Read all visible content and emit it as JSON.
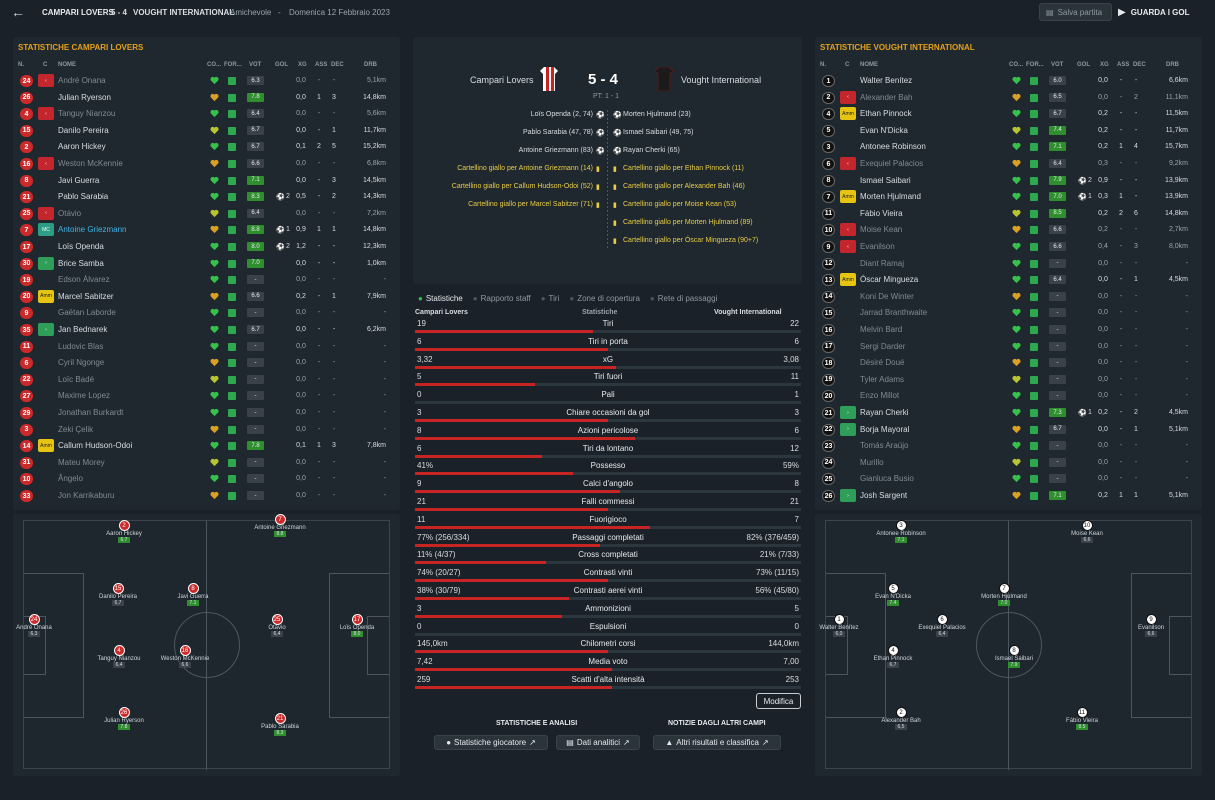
{
  "header": {
    "back_icon": "arrow-left-icon",
    "home": "CAMPARI LOVERS",
    "score": "5 - 4",
    "away": "VOUGHT INTERNATIONAL",
    "type": "Amichevole",
    "dash": "-",
    "date": "Domenica 12 Febbraio 2023",
    "save": "Salva partita",
    "watch": "GUARDA I GOL"
  },
  "cols": {
    "n": "N.",
    "c": "C",
    "nome": "NOME",
    "co": "CO...",
    "for": "FOR...",
    "vot": "VOT",
    "xg": "XG",
    "gol": "GOL",
    "ass": "ASS",
    "dec": "DEC",
    "drb": "DRB"
  },
  "home_panel": {
    "title": "STATISTICHE CAMPARI LOVERS",
    "players": [
      {
        "n": "24",
        "badge": "out",
        "name": "André Onana",
        "vot": "6.3",
        "gol": "",
        "xg": "0,0",
        "ass": "-",
        "dec": "-",
        "drb": "5,1km",
        "dim": true
      },
      {
        "n": "26",
        "badge": "",
        "name": "Julian Ryerson",
        "vot": "7.8",
        "gol": "",
        "xg": "0,0",
        "ass": "1",
        "dec": "3",
        "drb": "14,8km",
        "dim": false
      },
      {
        "n": "4",
        "badge": "out",
        "name": "Tanguy Nianzou",
        "vot": "6.4",
        "gol": "",
        "xg": "0,0",
        "ass": "-",
        "dec": "-",
        "drb": "5,6km",
        "dim": true
      },
      {
        "n": "15",
        "badge": "",
        "name": "Danilo Pereira",
        "vot": "6.7",
        "gol": "",
        "xg": "0,0",
        "ass": "-",
        "dec": "1",
        "drb": "11,7km",
        "dim": false
      },
      {
        "n": "2",
        "badge": "",
        "name": "Aaron Hickey",
        "vot": "6.7",
        "gol": "",
        "xg": "0,1",
        "ass": "2",
        "dec": "5",
        "drb": "15,2km",
        "dim": false
      },
      {
        "n": "16",
        "badge": "out",
        "name": "Weston McKennie",
        "vot": "6.6",
        "gol": "",
        "xg": "0,0",
        "ass": "-",
        "dec": "-",
        "drb": "6,8km",
        "dim": true
      },
      {
        "n": "8",
        "badge": "",
        "name": "Javi Guerra",
        "vot": "7.1",
        "gol": "",
        "xg": "0,0",
        "ass": "-",
        "dec": "3",
        "drb": "14,5km",
        "dim": false
      },
      {
        "n": "21",
        "badge": "",
        "name": "Pablo Sarabia",
        "vot": "8.3",
        "gol": "2",
        "xg": "0,5",
        "ass": "-",
        "dec": "2",
        "drb": "14,3km",
        "dim": false
      },
      {
        "n": "25",
        "badge": "out",
        "name": "Otávio",
        "vot": "6.4",
        "gol": "",
        "xg": "0,0",
        "ass": "-",
        "dec": "-",
        "drb": "7,2km",
        "dim": true
      },
      {
        "n": "7",
        "badge": "mc",
        "name": "Antoine Griezmann",
        "vot": "8.8",
        "gol": "1",
        "xg": "0,9",
        "ass": "1",
        "dec": "1",
        "drb": "14,8km",
        "dim": false,
        "hl": true
      },
      {
        "n": "17",
        "badge": "",
        "name": "Loïs Openda",
        "vot": "8.0",
        "gol": "2",
        "xg": "1,2",
        "ass": "-",
        "dec": "-",
        "drb": "12,3km",
        "dim": false
      },
      {
        "n": "30",
        "badge": "in",
        "name": "Brice Samba",
        "vot": "7.0",
        "gol": "",
        "xg": "0,0",
        "ass": "-",
        "dec": "-",
        "drb": "1,0km",
        "dim": false
      },
      {
        "n": "19",
        "badge": "",
        "name": "Edson Álvarez",
        "vot": "-",
        "gol": "",
        "xg": "0,0",
        "ass": "-",
        "dec": "-",
        "drb": "-",
        "dim": true
      },
      {
        "n": "20",
        "badge": "amm",
        "name": "Marcel Sabitzer",
        "vot": "6.6",
        "gol": "",
        "xg": "0,2",
        "ass": "-",
        "dec": "1",
        "drb": "7,9km",
        "dim": false
      },
      {
        "n": "9",
        "badge": "",
        "name": "Gaëtan Laborde",
        "vot": "-",
        "gol": "",
        "xg": "0,0",
        "ass": "-",
        "dec": "-",
        "drb": "-",
        "dim": true
      },
      {
        "n": "35",
        "badge": "in",
        "name": "Jan Bednarek",
        "vot": "6.7",
        "gol": "",
        "xg": "0,0",
        "ass": "-",
        "dec": "-",
        "drb": "6,2km",
        "dim": false
      },
      {
        "n": "11",
        "badge": "",
        "name": "Ludovic Blas",
        "vot": "-",
        "gol": "",
        "xg": "0,0",
        "ass": "-",
        "dec": "-",
        "drb": "-",
        "dim": true
      },
      {
        "n": "6",
        "badge": "",
        "name": "Cyril Ngonge",
        "vot": "-",
        "gol": "",
        "xg": "0,0",
        "ass": "-",
        "dec": "-",
        "drb": "-",
        "dim": true
      },
      {
        "n": "22",
        "badge": "",
        "name": "Loïc Badé",
        "vot": "-",
        "gol": "",
        "xg": "0,0",
        "ass": "-",
        "dec": "-",
        "drb": "-",
        "dim": true
      },
      {
        "n": "27",
        "badge": "",
        "name": "Maxime Lopez",
        "vot": "-",
        "gol": "",
        "xg": "0,0",
        "ass": "-",
        "dec": "-",
        "drb": "-",
        "dim": true
      },
      {
        "n": "29",
        "badge": "",
        "name": "Jonathan Burkardt",
        "vot": "-",
        "gol": "",
        "xg": "0,0",
        "ass": "-",
        "dec": "-",
        "drb": "-",
        "dim": true
      },
      {
        "n": "3",
        "badge": "",
        "name": "Zeki Çelik",
        "vot": "-",
        "gol": "",
        "xg": "0,0",
        "ass": "-",
        "dec": "-",
        "drb": "-",
        "dim": true
      },
      {
        "n": "14",
        "badge": "amm",
        "name": "Callum Hudson-Odoi",
        "vot": "7.8",
        "gol": "",
        "xg": "0,1",
        "ass": "1",
        "dec": "3",
        "drb": "7,8km",
        "dim": false
      },
      {
        "n": "31",
        "badge": "",
        "name": "Mateu Morey",
        "vot": "-",
        "gol": "",
        "xg": "0,0",
        "ass": "-",
        "dec": "-",
        "drb": "-",
        "dim": true
      },
      {
        "n": "10",
        "badge": "",
        "name": "Ângelo",
        "vot": "-",
        "gol": "",
        "xg": "0,0",
        "ass": "-",
        "dec": "-",
        "drb": "-",
        "dim": true
      },
      {
        "n": "33",
        "badge": "",
        "name": "Jon Karrikaburu",
        "vot": "-",
        "gol": "",
        "xg": "0,0",
        "ass": "-",
        "dec": "-",
        "drb": "-",
        "dim": true
      }
    ]
  },
  "away_panel": {
    "title": "STATISTICHE VOUGHT INTERNATIONAL",
    "players": [
      {
        "n": "1",
        "badge": "",
        "name": "Walter Benítez",
        "vot": "6.0",
        "gol": "",
        "xg": "0,0",
        "ass": "-",
        "dec": "-",
        "drb": "6,6km",
        "dim": false
      },
      {
        "n": "2",
        "badge": "out",
        "name": "Alexander Bah",
        "vot": "6.5",
        "gol": "",
        "xg": "0,0",
        "ass": "-",
        "dec": "2",
        "drb": "11,1km",
        "dim": true
      },
      {
        "n": "4",
        "badge": "amm",
        "name": "Ethan Pinnock",
        "vot": "6.7",
        "gol": "",
        "xg": "0,2",
        "ass": "-",
        "dec": "-",
        "drb": "11,5km",
        "dim": false
      },
      {
        "n": "5",
        "badge": "",
        "name": "Evan N'Dicka",
        "vot": "7.4",
        "gol": "",
        "xg": "0,2",
        "ass": "-",
        "dec": "-",
        "drb": "11,7km",
        "dim": false
      },
      {
        "n": "3",
        "badge": "",
        "name": "Antonee Robinson",
        "vot": "7.1",
        "gol": "",
        "xg": "0,2",
        "ass": "1",
        "dec": "4",
        "drb": "15,7km",
        "dim": false
      },
      {
        "n": "6",
        "badge": "out",
        "name": "Exequiel Palacios",
        "vot": "6.4",
        "gol": "",
        "xg": "0,3",
        "ass": "-",
        "dec": "-",
        "drb": "9,2km",
        "dim": true
      },
      {
        "n": "8",
        "badge": "",
        "name": "Ismael Saibari",
        "vot": "7.9",
        "gol": "2",
        "xg": "0,9",
        "ass": "-",
        "dec": "-",
        "drb": "13,9km",
        "dim": false
      },
      {
        "n": "7",
        "badge": "amm",
        "name": "Morten Hjulmand",
        "vot": "7.0",
        "gol": "1",
        "xg": "0,3",
        "ass": "1",
        "dec": "-",
        "drb": "13,9km",
        "dim": false
      },
      {
        "n": "11",
        "badge": "",
        "name": "Fábio Vieira",
        "vot": "8.5",
        "gol": "",
        "xg": "0,2",
        "ass": "2",
        "dec": "6",
        "drb": "14,8km",
        "dim": false
      },
      {
        "n": "10",
        "badge": "out",
        "name": "Moise Kean",
        "vot": "6.6",
        "gol": "",
        "xg": "0,2",
        "ass": "-",
        "dec": "-",
        "drb": "2,7km",
        "dim": true
      },
      {
        "n": "9",
        "badge": "out",
        "name": "Evanilson",
        "vot": "6.6",
        "gol": "",
        "xg": "0,4",
        "ass": "-",
        "dec": "3",
        "drb": "8,0km",
        "dim": true
      },
      {
        "n": "12",
        "badge": "",
        "name": "Diant Ramaj",
        "vot": "-",
        "gol": "",
        "xg": "0,0",
        "ass": "-",
        "dec": "-",
        "drb": "-",
        "dim": true
      },
      {
        "n": "13",
        "badge": "amm",
        "name": "Óscar Mingueza",
        "vot": "6.4",
        "gol": "",
        "xg": "0,0",
        "ass": "-",
        "dec": "1",
        "drb": "4,5km",
        "dim": false
      },
      {
        "n": "14",
        "badge": "",
        "name": "Koni De Winter",
        "vot": "-",
        "gol": "",
        "xg": "0,0",
        "ass": "-",
        "dec": "-",
        "drb": "-",
        "dim": true
      },
      {
        "n": "15",
        "badge": "",
        "name": "Jarrad Branthwaite",
        "vot": "-",
        "gol": "",
        "xg": "0,0",
        "ass": "-",
        "dec": "-",
        "drb": "-",
        "dim": true
      },
      {
        "n": "16",
        "badge": "",
        "name": "Melvin Bard",
        "vot": "-",
        "gol": "",
        "xg": "0,0",
        "ass": "-",
        "dec": "-",
        "drb": "-",
        "dim": true
      },
      {
        "n": "17",
        "badge": "",
        "name": "Sergi Darder",
        "vot": "-",
        "gol": "",
        "xg": "0,0",
        "ass": "-",
        "dec": "-",
        "drb": "-",
        "dim": true
      },
      {
        "n": "18",
        "badge": "",
        "name": "Désiré Doué",
        "vot": "-",
        "gol": "",
        "xg": "0,0",
        "ass": "-",
        "dec": "-",
        "drb": "-",
        "dim": true
      },
      {
        "n": "19",
        "badge": "",
        "name": "Tyler Adams",
        "vot": "-",
        "gol": "",
        "xg": "0,0",
        "ass": "-",
        "dec": "-",
        "drb": "-",
        "dim": true
      },
      {
        "n": "20",
        "badge": "",
        "name": "Enzo Millot",
        "vot": "-",
        "gol": "",
        "xg": "0,0",
        "ass": "-",
        "dec": "-",
        "drb": "-",
        "dim": true
      },
      {
        "n": "21",
        "badge": "in",
        "name": "Rayan Cherki",
        "vot": "7.3",
        "gol": "1",
        "xg": "0,2",
        "ass": "-",
        "dec": "2",
        "drb": "4,5km",
        "dim": false
      },
      {
        "n": "22",
        "badge": "in",
        "name": "Borja Mayoral",
        "vot": "6.7",
        "gol": "",
        "xg": "0,0",
        "ass": "-",
        "dec": "1",
        "drb": "5,1km",
        "dim": false
      },
      {
        "n": "23",
        "badge": "",
        "name": "Tomás Araújo",
        "vot": "-",
        "gol": "",
        "xg": "0,0",
        "ass": "-",
        "dec": "-",
        "drb": "-",
        "dim": true
      },
      {
        "n": "24",
        "badge": "",
        "name": "Murillo",
        "vot": "-",
        "gol": "",
        "xg": "0,0",
        "ass": "-",
        "dec": "-",
        "drb": "-",
        "dim": true
      },
      {
        "n": "25",
        "badge": "",
        "name": "Gianluca Busio",
        "vot": "-",
        "gol": "",
        "xg": "0,0",
        "ass": "-",
        "dec": "-",
        "drb": "-",
        "dim": true
      },
      {
        "n": "26",
        "badge": "in",
        "name": "Josh Sargent",
        "vot": "7.1",
        "gol": "",
        "xg": "0,2",
        "ass": "1",
        "dec": "1",
        "drb": "5,1km",
        "dim": false
      }
    ]
  },
  "badge_labels": {
    "amm": "Amm",
    "mc": "MC",
    "out": "‹",
    "in": "›"
  },
  "match": {
    "home_team": "Campari Lovers",
    "away_team": "Vought International",
    "score": "5 - 4",
    "pt": "PT: 1 - 1",
    "home_events": [
      {
        "text": "Loïs Openda (2, 74)",
        "kind": "goal"
      },
      {
        "text": "Pablo Sarabia (47, 78)",
        "kind": "goal"
      },
      {
        "text": "Antoine Griezmann (83)",
        "kind": "goal"
      },
      {
        "text": "Cartellino giallo per Antoine Griezmann (14)",
        "kind": "yellow"
      },
      {
        "text": "Cartellino giallo per Callum Hudson-Odoi (52)",
        "kind": "yellow"
      },
      {
        "text": "Cartellino giallo per Marcel Sabitzer (71)",
        "kind": "yellow"
      }
    ],
    "away_events": [
      {
        "text": "Morten Hjulmand (23)",
        "kind": "goal"
      },
      {
        "text": "Ismael Saibari (49, 75)",
        "kind": "goal"
      },
      {
        "text": "Rayan Cherki (65)",
        "kind": "goal"
      },
      {
        "text": "Cartellino giallo per Ethan Pinnock (11)",
        "kind": "yellow"
      },
      {
        "text": "Cartellino giallo per Alexander Bah (46)",
        "kind": "yellow"
      },
      {
        "text": "Cartellino giallo per Moise Kean (53)",
        "kind": "yellow"
      },
      {
        "text": "Cartellino giallo per Morten Hjulmand (89)",
        "kind": "yellow"
      },
      {
        "text": "Cartellino giallo per Óscar Mingueza (90+7)",
        "kind": "yellow"
      }
    ]
  },
  "tabs": [
    "Statistiche",
    "Rapporto staff",
    "Tiri",
    "Zone di copertura",
    "Rete di passaggi"
  ],
  "stats": {
    "home_label": "Campari Lovers",
    "mid_label": "Statistiche",
    "away_label": "Vought International",
    "rows": [
      {
        "label": "Tiri",
        "home": "19",
        "away": "22",
        "share": 0.46
      },
      {
        "label": "Tiri in porta",
        "home": "6",
        "away": "6",
        "share": 0.5
      },
      {
        "label": "xG",
        "home": "3,32",
        "away": "3,08",
        "share": 0.52
      },
      {
        "label": "Tiri fuori",
        "home": "5",
        "away": "11",
        "share": 0.31
      },
      {
        "label": "Pali",
        "home": "0",
        "away": "1",
        "share": 0.0
      },
      {
        "label": "Chiare occasioni da gol",
        "home": "3",
        "away": "3",
        "share": 0.5
      },
      {
        "label": "Azioni pericolose",
        "home": "8",
        "away": "6",
        "share": 0.57
      },
      {
        "label": "Tiri da lontano",
        "home": "6",
        "away": "12",
        "share": 0.33
      },
      {
        "label": "Possesso",
        "home": "41%",
        "away": "59%",
        "share": 0.41
      },
      {
        "label": "Calci d'angolo",
        "home": "9",
        "away": "8",
        "share": 0.53
      },
      {
        "label": "Falli commessi",
        "home": "21",
        "away": "21",
        "share": 0.5
      },
      {
        "label": "Fuorigioco",
        "home": "11",
        "away": "7",
        "share": 0.61
      },
      {
        "label": "Passaggi completati",
        "home": "77% (256/334)",
        "away": "82% (376/459)",
        "share": 0.48
      },
      {
        "label": "Cross completati",
        "home": "11% (4/37)",
        "away": "21% (7/33)",
        "share": 0.34
      },
      {
        "label": "Contrasti vinti",
        "home": "74% (20/27)",
        "away": "73% (11/15)",
        "share": 0.5
      },
      {
        "label": "Contrasti aerei vinti",
        "home": "38% (30/79)",
        "away": "56% (45/80)",
        "share": 0.4
      },
      {
        "label": "Ammonizioni",
        "home": "3",
        "away": "5",
        "share": 0.38
      },
      {
        "label": "Espulsioni",
        "home": "0",
        "away": "0",
        "share": 0.0
      },
      {
        "label": "Chilometri corsi",
        "home": "145,0km",
        "away": "144,0km",
        "share": 0.5
      },
      {
        "label": "Media voto",
        "home": "7,42",
        "away": "7,00",
        "share": 0.51
      },
      {
        "label": "Scatti d'alta intensità",
        "home": "259",
        "away": "253",
        "share": 0.51
      }
    ]
  },
  "modifica": "Modifica",
  "bottom": {
    "title1": "STATISTICHE E ANALISI",
    "title2": "NOTIZIE DAGLI ALTRI CAMPI",
    "btn1": "Statistiche giocatore",
    "btn2": "Dati analitici",
    "btn3": "Altri risultati e classifica"
  },
  "home_pitch": [
    {
      "n": "2",
      "name": "Aaron Hickey",
      "r": "6.7",
      "rc": "g"
    },
    {
      "n": "7",
      "name": "Antoine Griezmann",
      "r": "8.8",
      "rc": "g"
    },
    {
      "n": "15",
      "name": "Danilo Pereira",
      "r": "6,7",
      "rc": ""
    },
    {
      "n": "8",
      "name": "Javi Guerra",
      "r": "7.1",
      "rc": "g"
    },
    {
      "n": "24",
      "name": "André Onana",
      "r": "6,3",
      "rc": ""
    },
    {
      "n": "25",
      "name": "Otávio",
      "r": "6,4",
      "rc": ""
    },
    {
      "n": "17",
      "name": "Loïs Openda",
      "r": "8.0",
      "rc": "g"
    },
    {
      "n": "4",
      "name": "Tanguy Nianzou",
      "r": "6,4",
      "rc": ""
    },
    {
      "n": "16",
      "name": "Weston McKennie",
      "r": "6,6",
      "rc": ""
    },
    {
      "n": "26",
      "name": "Julian Ryerson",
      "r": "7.8",
      "rc": "g"
    },
    {
      "n": "21",
      "name": "Pablo Sarabia",
      "r": "8.3",
      "rc": "g"
    }
  ],
  "away_pitch": [
    {
      "n": "3",
      "name": "Antonee Robinson",
      "r": "7.1",
      "rc": "g"
    },
    {
      "n": "10",
      "name": "Moise Kean",
      "r": "6,6",
      "rc": ""
    },
    {
      "n": "5",
      "name": "Evan N'Dicka",
      "r": "7.4",
      "rc": "g"
    },
    {
      "n": "7",
      "name": "Morten Hjulmand",
      "r": "7.0",
      "rc": "g"
    },
    {
      "n": "1",
      "name": "Walter Benítez",
      "r": "6,0",
      "rc": ""
    },
    {
      "n": "6",
      "name": "Exequiel Palacios",
      "r": "6,4",
      "rc": ""
    },
    {
      "n": "9",
      "name": "Evanilson",
      "r": "6,6",
      "rc": ""
    },
    {
      "n": "4",
      "name": "Ethan Pinnock",
      "r": "6,7",
      "rc": ""
    },
    {
      "n": "8",
      "name": "Ismael Saibari",
      "r": "7.9",
      "rc": "g"
    },
    {
      "n": "2",
      "name": "Alexander Bah",
      "r": "6,5",
      "rc": ""
    },
    {
      "n": "11",
      "name": "Fábio Vieira",
      "r": "8.5",
      "rc": "g"
    }
  ]
}
